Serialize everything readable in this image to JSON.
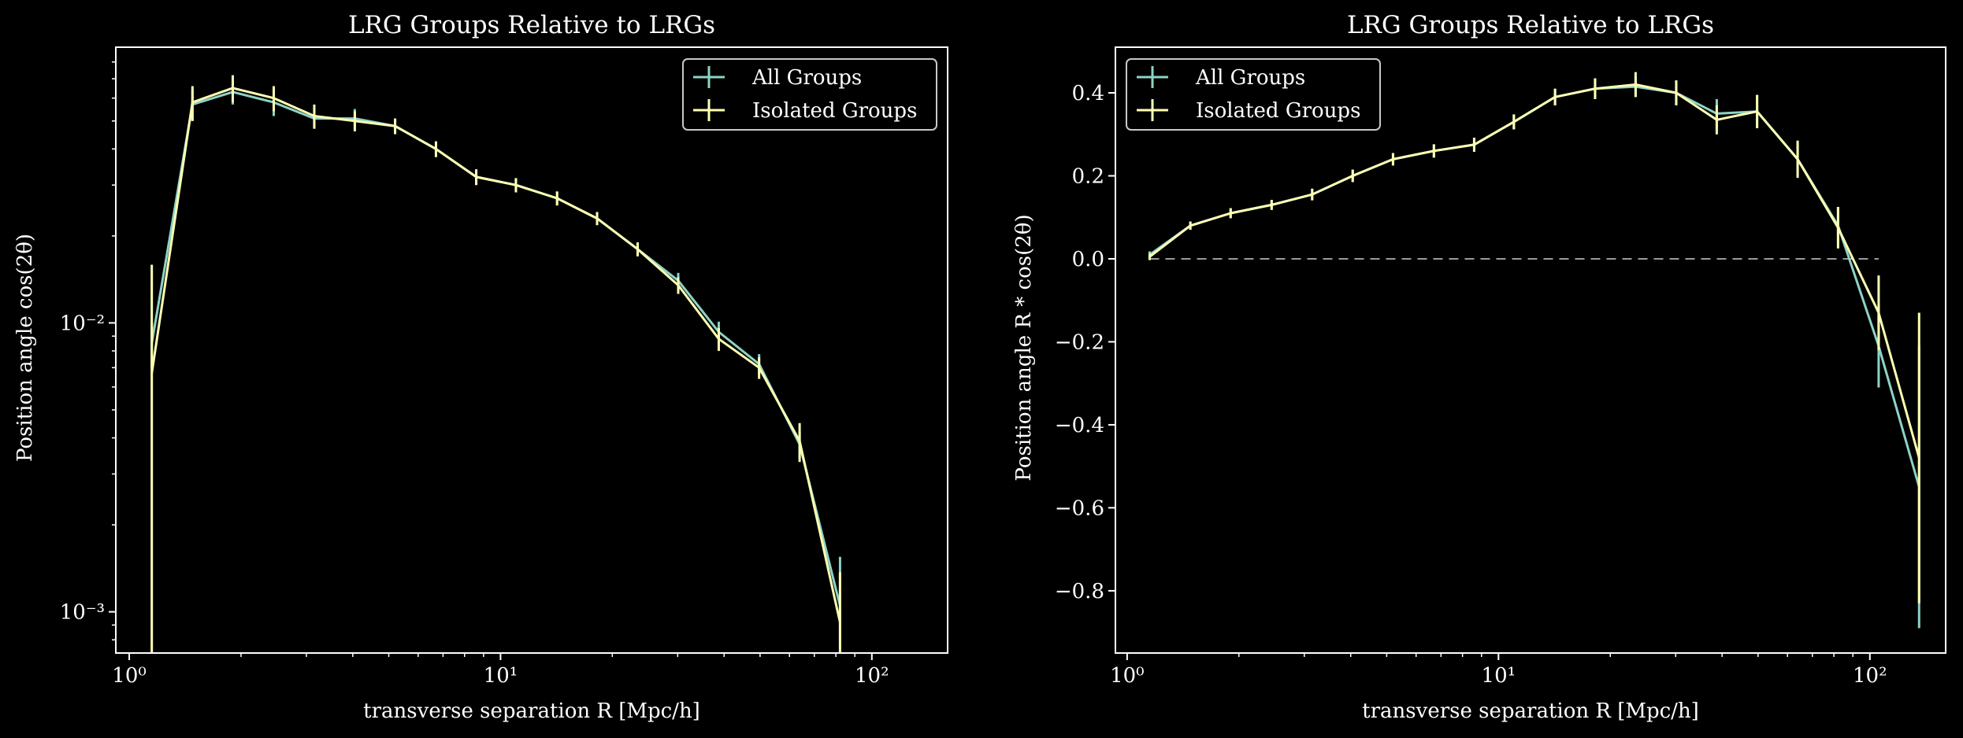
{
  "colors": {
    "background": "#000000",
    "axes": "#ffffff",
    "all_groups": "#8dd3c7",
    "isolated_groups": "#feffb3",
    "zero_line": "#9a9a9a"
  },
  "chart_data": [
    {
      "type": "line",
      "title": "LRG Groups Relative to LRGs",
      "xlabel": "transverse separation R [Mpc/h]",
      "ylabel": "Position angle cos(2θ)",
      "xscale": "log",
      "yscale": "log",
      "xlim": [
        0.92,
        160
      ],
      "ylim": [
        0.00072,
        0.09
      ],
      "x_ticks": [
        {
          "value": 1,
          "label": "10⁰"
        },
        {
          "value": 10,
          "label": "10¹"
        },
        {
          "value": 100,
          "label": "10²"
        }
      ],
      "y_ticks": [
        {
          "value": 0.001,
          "label": "10⁻³"
        },
        {
          "value": 0.01,
          "label": "10⁻²"
        }
      ],
      "legend": {
        "position": "top-right",
        "entries": [
          "All Groups",
          "Isolated Groups"
        ]
      },
      "x": [
        1.15,
        1.48,
        1.9,
        2.45,
        3.15,
        4.05,
        5.2,
        6.7,
        8.6,
        11.0,
        14.2,
        18.2,
        23.4,
        30.1,
        38.7,
        49.7,
        63.9,
        82.1
      ],
      "series": [
        {
          "name": "All Groups",
          "values": [
            0.0085,
            0.057,
            0.063,
            0.058,
            0.051,
            0.051,
            0.048,
            0.04,
            0.032,
            0.03,
            0.027,
            0.023,
            0.018,
            0.014,
            0.0093,
            0.0072,
            0.0038,
            0.00105
          ],
          "err_low": [
            0.0015,
            0.007,
            0.006,
            0.006,
            0.004,
            0.004,
            0.003,
            0.0025,
            0.002,
            0.0017,
            0.0015,
            0.0012,
            0.001,
            0.0009,
            0.0008,
            0.0006,
            0.0004,
            0.0003
          ],
          "err_high": [
            0.0015,
            0.007,
            0.006,
            0.006,
            0.004,
            0.004,
            0.003,
            0.0025,
            0.002,
            0.0017,
            0.0015,
            0.0012,
            0.001,
            0.0009,
            0.0008,
            0.0006,
            0.0004,
            0.0005
          ]
        },
        {
          "name": "Isolated Groups",
          "values": [
            0.0067,
            0.058,
            0.065,
            0.06,
            0.052,
            0.05,
            0.048,
            0.04,
            0.032,
            0.03,
            0.027,
            0.023,
            0.018,
            0.0135,
            0.0088,
            0.007,
            0.0039,
            0.00092
          ],
          "err_low": [
            0.0062,
            0.008,
            0.007,
            0.006,
            0.005,
            0.004,
            0.003,
            0.0025,
            0.002,
            0.0017,
            0.0015,
            0.0012,
            0.001,
            0.0009,
            0.0008,
            0.0006,
            0.0006,
            0.0003
          ],
          "err_high": [
            0.0092,
            0.008,
            0.007,
            0.006,
            0.005,
            0.004,
            0.003,
            0.0025,
            0.002,
            0.0017,
            0.0015,
            0.0012,
            0.001,
            0.0009,
            0.0008,
            0.0006,
            0.0006,
            0.00045
          ]
        }
      ]
    },
    {
      "type": "line",
      "title": "LRG Groups Relative to LRGs",
      "xlabel": "transverse separation R [Mpc/h]",
      "ylabel": "Position angle R * cos(2θ)",
      "xscale": "log",
      "yscale": "linear",
      "xlim": [
        0.93,
        160
      ],
      "ylim": [
        -0.95,
        0.51
      ],
      "x_ticks": [
        {
          "value": 1,
          "label": "10⁰"
        },
        {
          "value": 10,
          "label": "10¹"
        },
        {
          "value": 100,
          "label": "10²"
        }
      ],
      "y_ticks": [
        {
          "value": 0.4,
          "label": "0.4"
        },
        {
          "value": 0.2,
          "label": "0.2"
        },
        {
          "value": 0.0,
          "label": "0.0"
        },
        {
          "value": -0.2,
          "label": "−0.2"
        },
        {
          "value": -0.4,
          "label": "−0.4"
        },
        {
          "value": -0.6,
          "label": "−0.6"
        },
        {
          "value": -0.8,
          "label": "−0.8"
        }
      ],
      "reference_line": {
        "y": 0.0,
        "style": "dashed"
      },
      "legend": {
        "position": "top-left",
        "entries": [
          "All Groups",
          "Isolated Groups"
        ]
      },
      "x": [
        1.15,
        1.48,
        1.9,
        2.45,
        3.15,
        4.05,
        5.2,
        6.7,
        8.6,
        11.0,
        14.2,
        18.2,
        23.4,
        30.1,
        38.7,
        49.7,
        63.9,
        82.1,
        105.6,
        135.7
      ],
      "series": [
        {
          "name": "All Groups",
          "values": [
            0.01,
            0.08,
            0.11,
            0.13,
            0.155,
            0.2,
            0.24,
            0.26,
            0.275,
            0.33,
            0.39,
            0.41,
            0.415,
            0.4,
            0.35,
            0.355,
            0.24,
            0.08,
            -0.21,
            -0.55
          ],
          "err": [
            0.008,
            0.01,
            0.012,
            0.012,
            0.014,
            0.015,
            0.015,
            0.016,
            0.017,
            0.018,
            0.02,
            0.025,
            0.025,
            0.03,
            0.035,
            0.04,
            0.04,
            0.045,
            0.1,
            0.34
          ]
        },
        {
          "name": "Isolated Groups",
          "values": [
            0.005,
            0.08,
            0.11,
            0.13,
            0.155,
            0.2,
            0.24,
            0.26,
            0.275,
            0.33,
            0.39,
            0.41,
            0.42,
            0.4,
            0.335,
            0.355,
            0.24,
            0.075,
            -0.13,
            -0.48
          ],
          "err": [
            0.008,
            0.01,
            0.012,
            0.012,
            0.014,
            0.015,
            0.015,
            0.016,
            0.017,
            0.018,
            0.02,
            0.025,
            0.03,
            0.03,
            0.035,
            0.04,
            0.045,
            0.05,
            0.09,
            0.35
          ]
        }
      ]
    }
  ]
}
